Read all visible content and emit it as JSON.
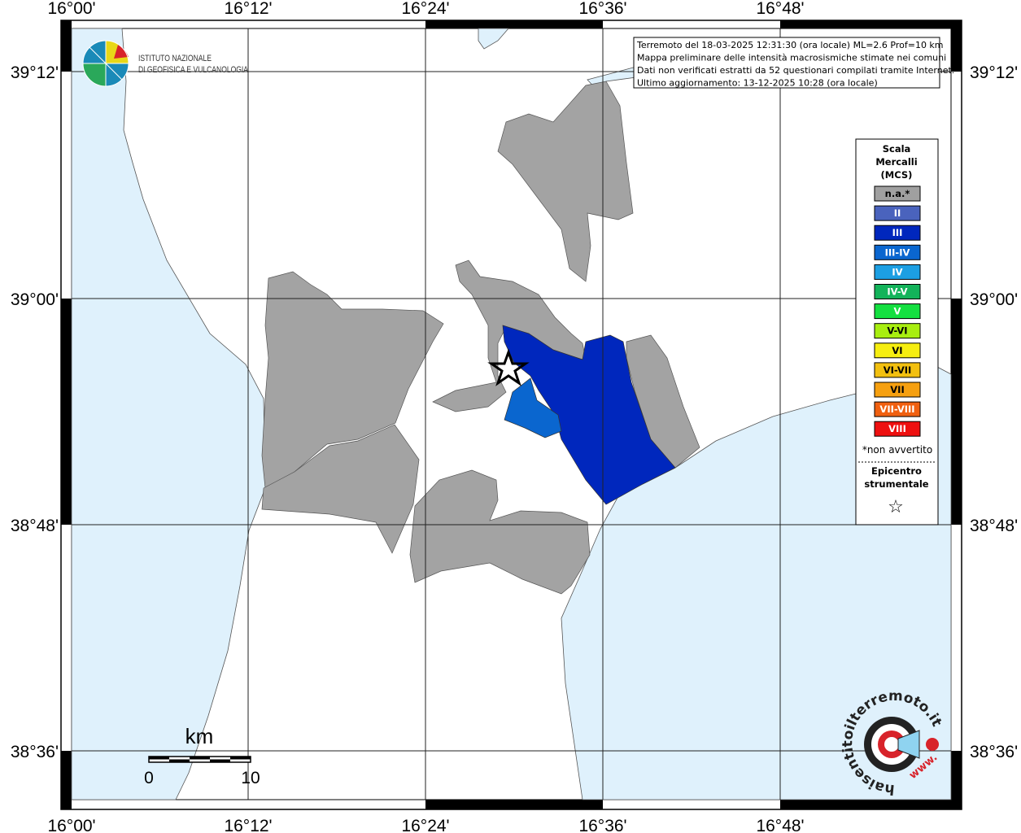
{
  "map": {
    "lon_labels": [
      "16°00'",
      "16°12'",
      "16°24'",
      "16°36'",
      "16°48'"
    ],
    "lat_labels": [
      "39°12'",
      "39°00'",
      "38°48'",
      "38°36'"
    ],
    "info_box": [
      "Terremoto del 18-03-2025 12:31:30 (ora locale) ML=2.6 Prof=10 km",
      "Mappa preliminare delle intensità macrosismiche stimate nei comuni",
      "Dati non verificati estratti da 52 questionari compilati tramite Internet.",
      "Ultimo aggiornamento: 13-12-2025 10:28 (ora locale)"
    ],
    "scale_bar": {
      "unit": "km",
      "labels": [
        "0",
        "10"
      ]
    }
  },
  "legend": {
    "title": [
      "Scala",
      "Mercalli",
      "(MCS)"
    ],
    "items": [
      {
        "label": "n.a.*",
        "color": "#a0a0a0"
      },
      {
        "label": "II",
        "color": "#4a63bd"
      },
      {
        "label": "III",
        "color": "#0027bd"
      },
      {
        "label": "III-IV",
        "color": "#0a66cf"
      },
      {
        "label": "IV",
        "color": "#1c9fe3"
      },
      {
        "label": "IV-V",
        "color": "#13b35a"
      },
      {
        "label": "V",
        "color": "#14e040"
      },
      {
        "label": "V-VI",
        "color": "#a8ee10"
      },
      {
        "label": "VI",
        "color": "#f6ee10"
      },
      {
        "label": "VI-VII",
        "color": "#f2c010"
      },
      {
        "label": "VII",
        "color": "#f6a010"
      },
      {
        "label": "VII-VIII",
        "color": "#f06010"
      },
      {
        "label": "VIII",
        "color": "#ee1010"
      }
    ],
    "note": "*non avvertito",
    "epicenter_title": [
      "Epicentro",
      "strumentale"
    ],
    "epicenter_symbol": "☆"
  },
  "logos": {
    "ingv": [
      "ISTITUTO NAZIONALE",
      "DI GEOFISICA E VULCANOLOGIA"
    ],
    "hsit": "haisentitoilterremoto.it",
    "hsit_url": "www."
  }
}
